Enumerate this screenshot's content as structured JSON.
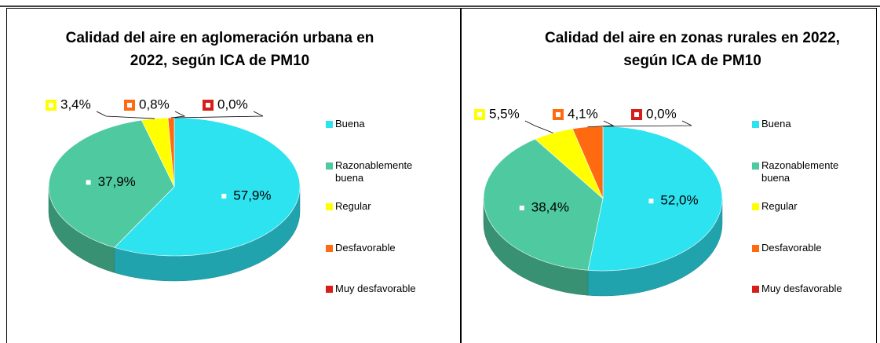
{
  "chart_data": [
    {
      "type": "pie",
      "title": "Calidad del aire en aglomeración urbana en 2022, según ICA de PM10",
      "categories": [
        "Buena",
        "Razonablemente buena",
        "Regular",
        "Desfavorable",
        "Muy desfavorable"
      ],
      "values": [
        57.9,
        37.9,
        3.4,
        0.8,
        0.0
      ],
      "value_labels": [
        "57,9%",
        "37,9%",
        "3,4%",
        "0,8%",
        "0,0%"
      ],
      "colors": [
        "#2ee3f0",
        "#4ec9a0",
        "#ffff00",
        "#ff6a10",
        "#d81e1a"
      ]
    },
    {
      "type": "pie",
      "title": "Calidad del aire en zonas rurales en 2022, según ICA de PM10",
      "categories": [
        "Buena",
        "Razonablemente buena",
        "Regular",
        "Desfavorable",
        "Muy desfavorable"
      ],
      "values": [
        52.0,
        38.4,
        5.5,
        4.1,
        0.0
      ],
      "value_labels": [
        "52,0%",
        "38,4%",
        "5,5%",
        "4,1%",
        "0,0%"
      ],
      "colors": [
        "#2ee3f0",
        "#4ec9a0",
        "#ffff00",
        "#ff6a10",
        "#d81e1a"
      ]
    }
  ]
}
